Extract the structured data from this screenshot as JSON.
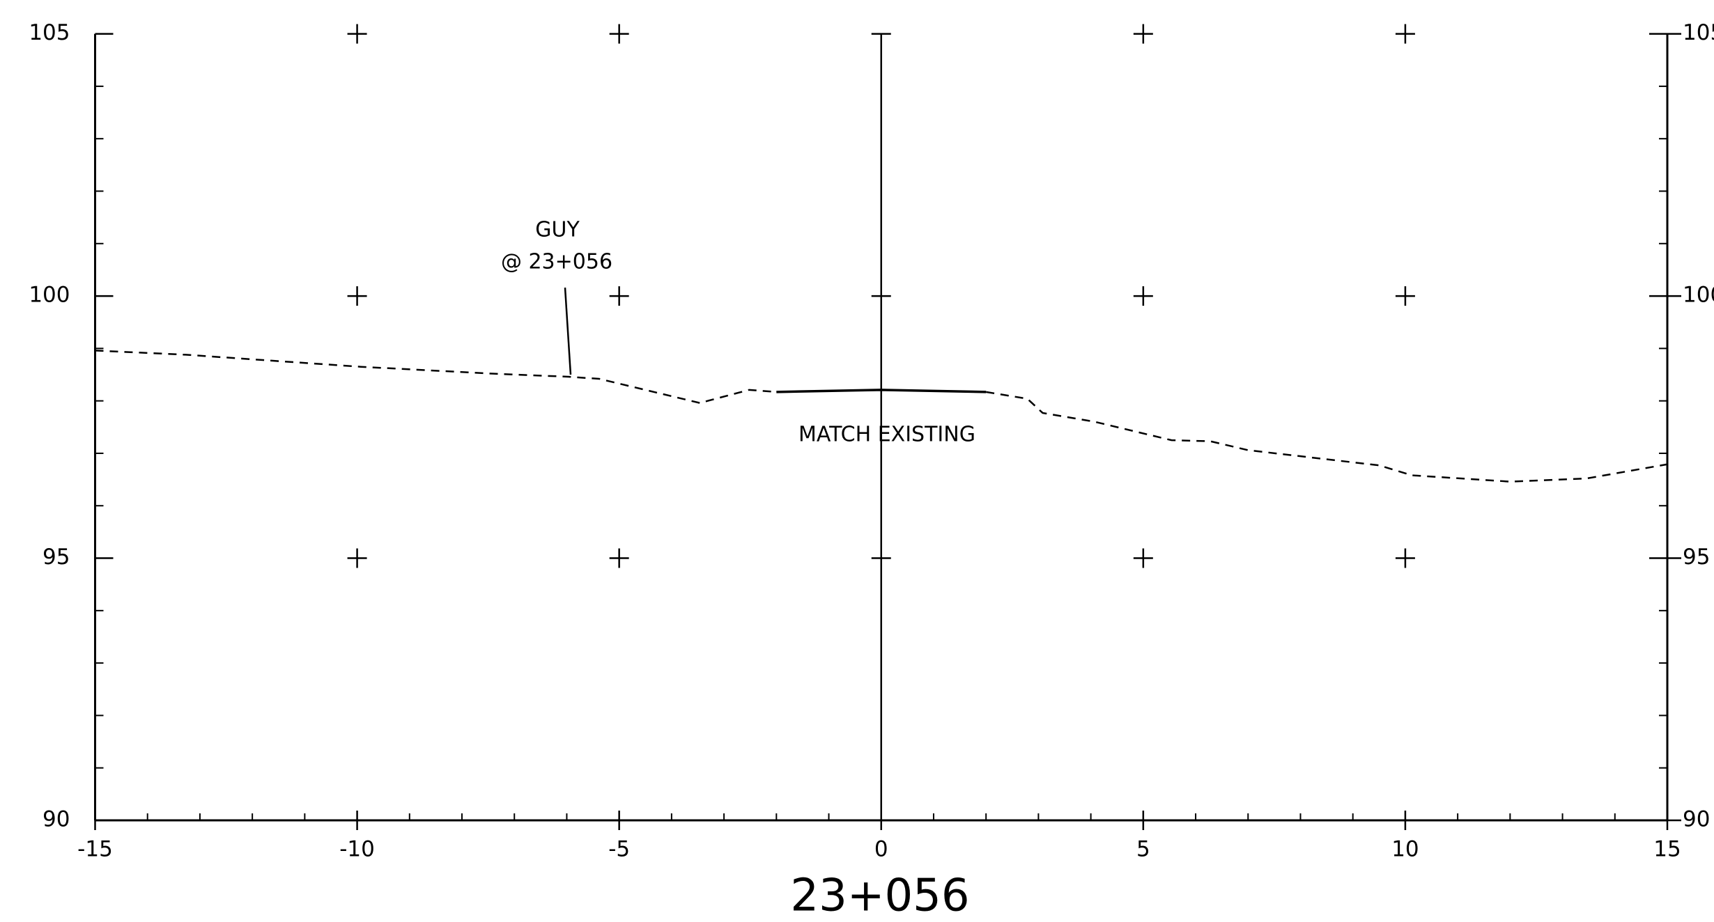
{
  "chart_data": {
    "type": "line",
    "title": "23+056",
    "annotations": [
      "GUY",
      "@ 23+056",
      "MATCH EXISTING"
    ],
    "xlim": [
      -15,
      15
    ],
    "xticks": [
      -15,
      -10,
      -5,
      0,
      5,
      10,
      15
    ],
    "ylim": [
      90,
      105
    ],
    "yticks": [
      90,
      95,
      100,
      105
    ],
    "grid": "crosses",
    "series": [
      {
        "color": "#000000",
        "dash": true,
        "x": [
          -15,
          -13.27,
          -9.93,
          -7.43,
          -5.97,
          -5.38,
          -3.46,
          -2.52,
          -2.0,
          null,
          2.0,
          2.79,
          3.08,
          4.08,
          5.54,
          6.28,
          7.0,
          9.5,
          10.13,
          12.0,
          13.46,
          15
        ],
        "values": [
          98.96,
          98.88,
          98.65,
          98.52,
          98.46,
          98.42,
          97.96,
          98.21,
          98.17,
          null,
          98.17,
          98.04,
          97.77,
          97.6,
          97.25,
          97.23,
          97.06,
          96.77,
          96.58,
          96.46,
          96.52,
          96.79
        ]
      },
      {
        "color": "#000000",
        "dash": false,
        "x": [
          -2.0,
          0,
          2.0
        ],
        "values": [
          98.17,
          98.21,
          98.17
        ]
      }
    ]
  }
}
